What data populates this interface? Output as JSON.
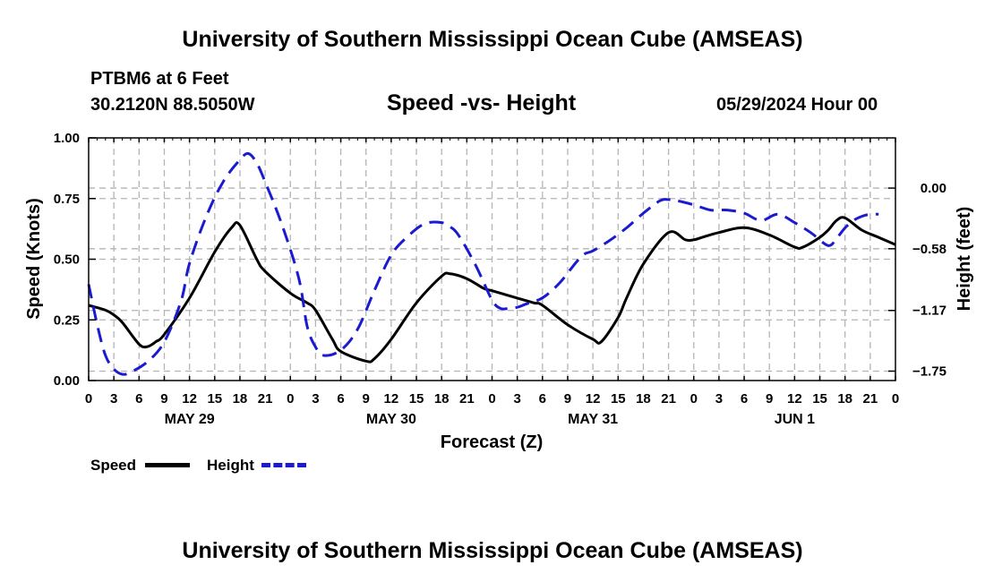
{
  "header": {
    "title": "University of Southern Mississippi Ocean Cube (AMSEAS)",
    "station": "PTBM6 at 6 Feet",
    "coords": "30.2120N  88.5050W",
    "subtitle": "Speed -vs- Height",
    "datetime": "05/29/2024 Hour 00"
  },
  "footer": {
    "title": "University of Southern Mississippi Ocean Cube (AMSEAS)"
  },
  "legend": {
    "speed_label": "Speed",
    "height_label": "Height"
  },
  "colors": {
    "speed": "#000000",
    "height": "#1a1ad0",
    "grid": "#b4b4b4"
  },
  "chart_data": {
    "type": "line",
    "title": "Speed -vs- Height",
    "xlabel": "Forecast (Z)",
    "ylabel": "Speed (Knots)",
    "y2label": "Height (feet)",
    "xlim": [
      0,
      96
    ],
    "ylim": [
      0,
      1.0
    ],
    "y2lim": [
      -1.84,
      0.48
    ],
    "x_tick_labels": [
      "0",
      "3",
      "6",
      "9",
      "12",
      "15",
      "18",
      "21",
      "0",
      "3",
      "6",
      "9",
      "12",
      "15",
      "18",
      "21",
      "0",
      "3",
      "6",
      "9",
      "12",
      "15",
      "18",
      "21",
      "0",
      "3",
      "6",
      "9",
      "12",
      "15",
      "18",
      "21",
      "0"
    ],
    "day_labels": [
      {
        "x": 12,
        "label": "MAY 29"
      },
      {
        "x": 36,
        "label": "MAY 30"
      },
      {
        "x": 60,
        "label": "MAY 31"
      },
      {
        "x": 84,
        "label": "JUN 1"
      }
    ],
    "y_ticks": [
      0.0,
      0.25,
      0.5,
      0.75,
      1.0
    ],
    "y_tick_labels": [
      "0.00",
      "0.25",
      "0.50",
      "0.75",
      "1.00"
    ],
    "y2_ticks": [
      0.0,
      -0.58,
      -1.17,
      -1.75
    ],
    "y2_tick_labels": [
      "0.00",
      "−0.58",
      "−1.17",
      "−1.75"
    ],
    "series": [
      {
        "name": "Speed",
        "axis": "left",
        "style": "solid",
        "x": [
          0,
          2,
          3,
          4,
          6,
          7,
          8,
          9,
          12,
          15,
          17,
          18,
          20,
          21,
          24,
          26,
          27,
          29,
          30,
          33,
          34,
          36,
          39,
          42,
          43,
          45,
          47,
          48,
          51,
          53,
          54,
          57,
          60,
          61,
          63,
          64,
          66,
          69,
          71,
          72,
          73,
          75,
          78,
          81,
          84,
          85,
          87,
          88,
          89,
          90,
          92,
          94,
          96
        ],
        "y": [
          0.31,
          0.29,
          0.27,
          0.24,
          0.15,
          0.14,
          0.16,
          0.19,
          0.34,
          0.53,
          0.63,
          0.64,
          0.5,
          0.45,
          0.36,
          0.32,
          0.29,
          0.17,
          0.12,
          0.08,
          0.09,
          0.17,
          0.32,
          0.43,
          0.44,
          0.42,
          0.38,
          0.37,
          0.34,
          0.32,
          0.31,
          0.23,
          0.17,
          0.16,
          0.26,
          0.34,
          0.48,
          0.61,
          0.58,
          0.58,
          0.59,
          0.61,
          0.63,
          0.6,
          0.55,
          0.55,
          0.59,
          0.62,
          0.66,
          0.67,
          0.62,
          0.59,
          0.56
        ]
      },
      {
        "name": "Height",
        "axis": "right",
        "style": "dashed",
        "x": [
          0,
          1,
          2,
          3,
          4,
          5,
          7,
          9,
          11,
          12,
          14,
          16,
          18,
          19,
          20,
          21,
          23,
          25,
          26,
          27,
          28,
          30,
          32,
          34,
          36,
          38,
          40,
          42,
          43,
          44,
          46,
          48,
          49,
          50,
          51,
          52,
          54,
          56,
          58,
          59,
          60,
          62,
          64,
          66,
          68,
          69,
          70,
          72,
          74,
          76,
          78,
          80,
          82,
          84,
          86,
          88,
          89,
          90,
          91,
          92,
          93,
          94
        ],
        "y": [
          -0.92,
          -1.3,
          -1.6,
          -1.73,
          -1.78,
          -1.76,
          -1.66,
          -1.47,
          -1.08,
          -0.72,
          -0.27,
          0.06,
          0.27,
          0.33,
          0.24,
          0.06,
          -0.35,
          -0.86,
          -1.32,
          -1.52,
          -1.6,
          -1.55,
          -1.35,
          -0.98,
          -0.64,
          -0.46,
          -0.34,
          -0.33,
          -0.37,
          -0.45,
          -0.73,
          -1.07,
          -1.15,
          -1.15,
          -1.14,
          -1.11,
          -1.05,
          -0.91,
          -0.71,
          -0.63,
          -0.6,
          -0.5,
          -0.38,
          -0.24,
          -0.12,
          -0.11,
          -0.12,
          -0.16,
          -0.21,
          -0.21,
          -0.24,
          -0.31,
          -0.25,
          -0.33,
          -0.43,
          -0.55,
          -0.48,
          -0.38,
          -0.31,
          -0.27,
          -0.25,
          -0.25
        ]
      }
    ]
  }
}
